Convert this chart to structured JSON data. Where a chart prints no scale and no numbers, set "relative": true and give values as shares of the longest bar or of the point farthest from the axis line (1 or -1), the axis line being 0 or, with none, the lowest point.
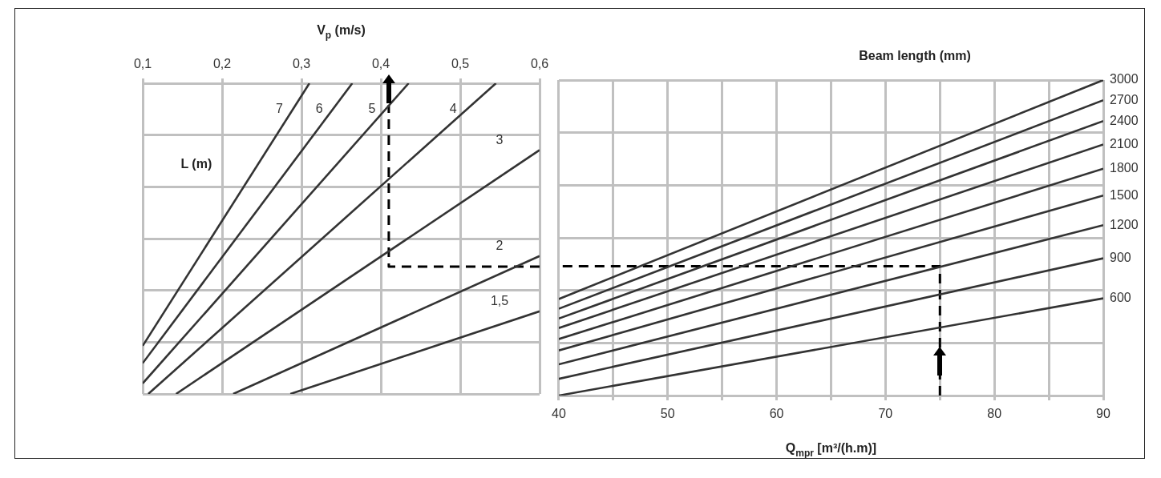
{
  "chart_data": [
    {
      "type": "line",
      "xlabel": "V$_{p}$ (m/s)",
      "ylabel": "L (m)",
      "relative": true,
      "grid": true,
      "marker": "none",
      "xlim": [
        0.1,
        0.6
      ],
      "xticks": [
        {
          "value": 0.1,
          "label": "0,1"
        },
        {
          "value": 0.2,
          "label": "0,2"
        },
        {
          "value": 0.3,
          "label": "0,3"
        },
        {
          "value": 0.4,
          "label": "0,4"
        },
        {
          "value": 0.5,
          "label": "0,5"
        },
        {
          "value": 0.6,
          "label": "0,6"
        }
      ],
      "series": [
        {
          "name": "7",
          "color": "#333333",
          "x": [
            0.1,
            0.31
          ],
          "values": [
            0.155,
            1
          ]
        },
        {
          "name": "6",
          "color": "#333333",
          "x": [
            0.1,
            0.364
          ],
          "values": [
            0.099,
            1
          ]
        },
        {
          "name": "5",
          "color": "#333333",
          "x": [
            0.1,
            0.435
          ],
          "values": [
            0.034,
            1
          ]
        },
        {
          "name": "4",
          "color": "#333333",
          "x": [
            0.107,
            0.545
          ],
          "values": [
            0,
            1
          ]
        },
        {
          "name": "3",
          "color": "#333333",
          "x": [
            0.142,
            0.6
          ],
          "values": [
            0,
            0.785
          ]
        },
        {
          "name": "2",
          "color": "#333333",
          "x": [
            0.214,
            0.6
          ],
          "values": [
            0,
            0.444
          ]
        },
        {
          "name": "1,5",
          "color": "#333333",
          "x": [
            0.286,
            0.6
          ],
          "values": [
            0,
            0.266
          ]
        },
        {
          "color": "#000000",
          "line_style": "dashed",
          "x": [
            0.6,
            0.41,
            0.41
          ],
          "values": [
            0.41,
            0.41,
            0.93
          ]
        }
      ]
    },
    {
      "type": "line",
      "xlabel": "Q$_{mpr}$ [m³/(h.m)]",
      "legend_title": "Beam length (mm)",
      "relative": true,
      "grid": true,
      "marker": "none",
      "xlim": [
        40,
        90
      ],
      "xticks": [
        40,
        {
          "value": 45,
          "label": null
        },
        50,
        {
          "value": 55,
          "label": null
        },
        60,
        {
          "value": 65,
          "label": null
        },
        70,
        {
          "value": 75,
          "label": null
        },
        80,
        {
          "value": 85,
          "label": null
        },
        90
      ],
      "series": [
        {
          "name": "3000",
          "color": "#333333",
          "x": [
            40,
            90
          ],
          "values": [
            0.306,
            1
          ]
        },
        {
          "name": "2700",
          "color": "#333333",
          "x": [
            40,
            90
          ],
          "values": [
            0.275,
            0.936
          ]
        },
        {
          "name": "2400",
          "color": "#333333",
          "x": [
            40,
            90
          ],
          "values": [
            0.244,
            0.87
          ]
        },
        {
          "name": "2100",
          "color": "#333333",
          "x": [
            40,
            90
          ],
          "values": [
            0.214,
            0.796
          ]
        },
        {
          "name": "1800",
          "color": "#333333",
          "x": [
            40,
            90
          ],
          "values": [
            0.179,
            0.719
          ]
        },
        {
          "name": "1500",
          "color": "#333333",
          "x": [
            40,
            90
          ],
          "values": [
            0.143,
            0.634
          ]
        },
        {
          "name": "1200",
          "color": "#333333",
          "x": [
            40,
            90
          ],
          "values": [
            0.099,
            0.54
          ]
        },
        {
          "name": "900",
          "color": "#333333",
          "x": [
            40,
            90
          ],
          "values": [
            0.053,
            0.435
          ]
        },
        {
          "name": "600",
          "color": "#333333",
          "x": [
            40,
            90
          ],
          "values": [
            0,
            0.308
          ]
        },
        {
          "color": "#000000",
          "line_style": "dashed",
          "x": [
            75,
            75,
            40
          ],
          "values": [
            0,
            0.41,
            0.41
          ]
        }
      ]
    }
  ]
}
